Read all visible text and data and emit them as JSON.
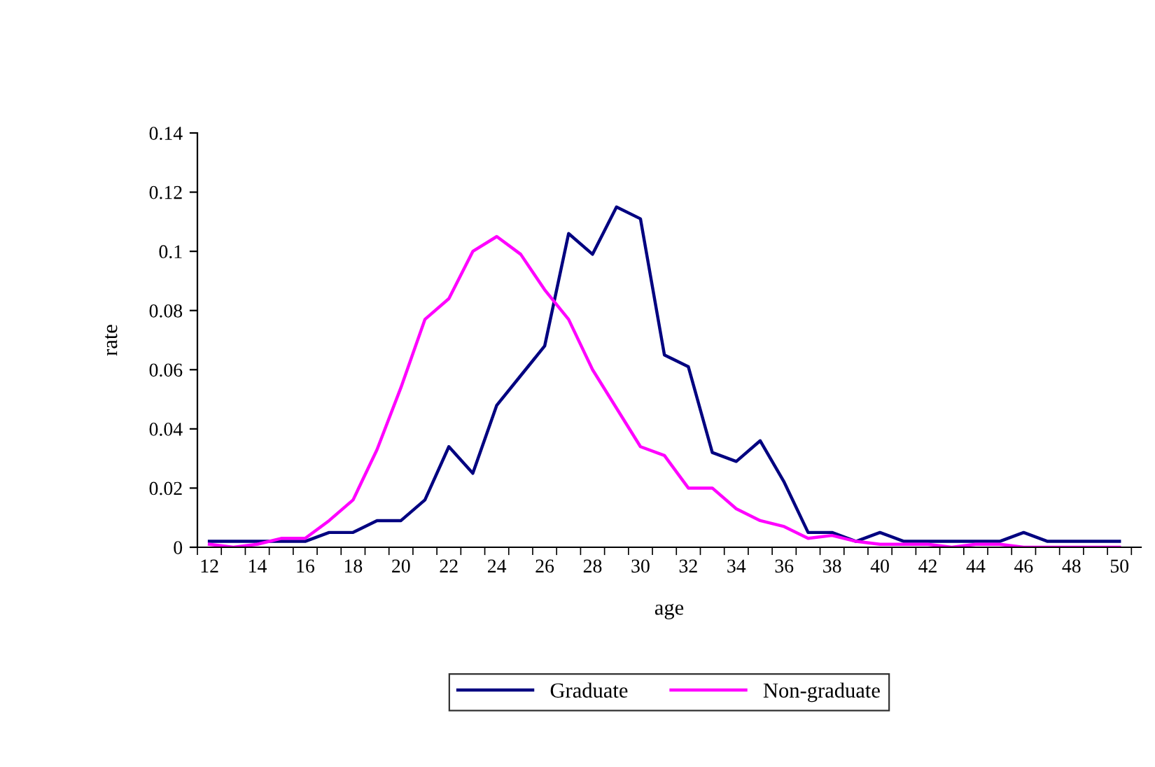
{
  "chart_data": {
    "type": "line",
    "xlabel": "age",
    "ylabel": "rate",
    "categories": [
      "12",
      null,
      "14",
      null,
      "16",
      null,
      "18",
      null,
      "20",
      null,
      "22",
      null,
      "24",
      null,
      "26",
      null,
      "28",
      null,
      "30",
      null,
      "32",
      null,
      "34",
      null,
      "36",
      null,
      "38",
      null,
      "40",
      null,
      "42",
      null,
      "44",
      null,
      "46",
      null,
      "48",
      null,
      "50"
    ],
    "series": [
      {
        "name": "Graduate",
        "color": "#000080",
        "values": [
          0.002,
          0.002,
          0.002,
          0.002,
          0.002,
          0.005,
          0.005,
          0.009,
          0.009,
          0.016,
          0.034,
          0.025,
          0.048,
          0.058,
          0.068,
          0.106,
          0.099,
          0.115,
          0.111,
          0.065,
          0.061,
          0.032,
          0.029,
          0.036,
          0.022,
          0.005,
          0.005,
          0.002,
          0.005,
          0.002,
          0.002,
          0.002,
          0.002,
          0.002,
          0.005,
          0.002,
          0.002,
          0.002,
          0.002
        ]
      },
      {
        "name": "Non-graduate",
        "color": "#ff00ff",
        "values": [
          0.001,
          0.0,
          0.001,
          0.003,
          0.003,
          0.009,
          0.016,
          0.033,
          0.054,
          0.077,
          0.084,
          0.1,
          0.105,
          0.099,
          0.087,
          0.077,
          0.06,
          0.047,
          0.034,
          0.031,
          0.02,
          0.02,
          0.013,
          0.009,
          0.007,
          0.003,
          0.004,
          0.002,
          0.001,
          0.001,
          0.001,
          0.0,
          0.001,
          0.001,
          0.0,
          0.0,
          0.0,
          0.0,
          0.0
        ]
      }
    ],
    "ylim": [
      0,
      0.14
    ],
    "yticks": [
      0,
      0.02,
      0.04,
      0.06,
      0.08,
      0.1,
      0.12,
      0.14
    ],
    "grid": false,
    "legend": "bottom",
    "marker": "none",
    "line_style": "solid"
  }
}
